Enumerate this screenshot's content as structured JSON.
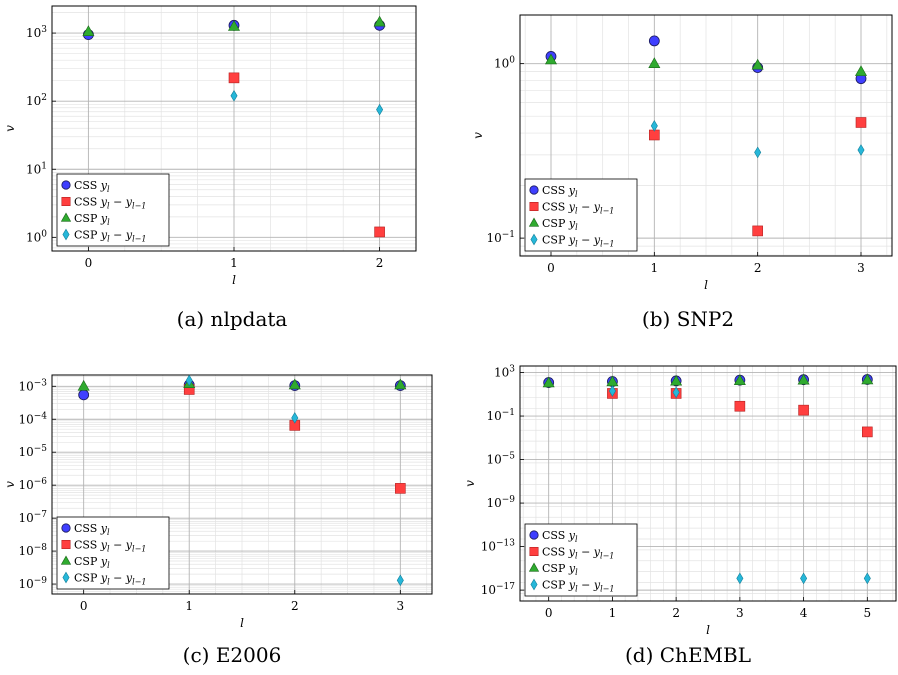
{
  "chart_data": [
    {
      "type": "scatter",
      "caption": "(a) nlpdata",
      "xlabel": "l",
      "ylabel": "v",
      "yscale": "log",
      "ylim": [
        0.63,
        2500
      ],
      "xlim": [
        -0.25,
        2.25
      ],
      "x_ticks": [
        0,
        1,
        2
      ],
      "y_ticks": [
        {
          "value": 1,
          "label": "10^0"
        },
        {
          "value": 10,
          "label": "10^1"
        },
        {
          "value": 100,
          "label": "10^2"
        },
        {
          "value": 1000,
          "label": "10^3"
        }
      ],
      "grid": true,
      "legend_position": "bottom-left",
      "series": [
        {
          "name": "CSS y_l",
          "legend_main": "CSS",
          "legend_math": "y",
          "legend_sub": "l",
          "legend_tail": "",
          "legend_tail_sub": "",
          "marker": "circle",
          "color": "#3f3fff",
          "x": [
            0,
            1,
            2
          ],
          "y": [
            950,
            1300,
            1300
          ]
        },
        {
          "name": "CSS y_l - y_{l-1}",
          "legend_main": "CSS",
          "legend_math": "y",
          "legend_sub": "l",
          "legend_tail": " − y",
          "legend_tail_sub": "l−1",
          "marker": "square",
          "color": "#ff3f3f",
          "x": [
            1,
            2
          ],
          "y": [
            220,
            1.2
          ]
        },
        {
          "name": "CSP y_l",
          "legend_main": "CSP",
          "legend_math": "y",
          "legend_sub": "l",
          "legend_tail": "",
          "legend_tail_sub": "",
          "marker": "triangle",
          "color": "#2faa2f",
          "x": [
            0,
            1,
            2
          ],
          "y": [
            1050,
            1250,
            1450
          ]
        },
        {
          "name": "CSP y_l - y_{l-1}",
          "legend_main": "CSP",
          "legend_math": "y",
          "legend_sub": "l",
          "legend_tail": " − y",
          "legend_tail_sub": "l−1",
          "marker": "diamond",
          "color": "#26b7d9",
          "x": [
            1,
            2
          ],
          "y": [
            120,
            75
          ]
        }
      ]
    },
    {
      "type": "scatter",
      "caption": "(b) SNP2",
      "xlabel": "l",
      "ylabel": "v",
      "yscale": "log",
      "ylim": [
        0.079,
        1.9
      ],
      "xlim": [
        -0.3,
        3.3
      ],
      "x_ticks": [
        0,
        1,
        2,
        3
      ],
      "y_ticks": [
        {
          "value": 0.1,
          "label": "10^-1"
        },
        {
          "value": 1,
          "label": "10^0"
        }
      ],
      "grid": true,
      "legend_position": "bottom-left",
      "series": [
        {
          "name": "CSS y_l",
          "legend_main": "CSS",
          "legend_math": "y",
          "legend_sub": "l",
          "legend_tail": "",
          "legend_tail_sub": "",
          "marker": "circle",
          "color": "#3f3fff",
          "x": [
            0,
            1,
            2,
            3
          ],
          "y": [
            1.1,
            1.35,
            0.95,
            0.82
          ]
        },
        {
          "name": "CSS y_l - y_{l-1}",
          "legend_main": "CSS",
          "legend_math": "y",
          "legend_sub": "l",
          "legend_tail": " − y",
          "legend_tail_sub": "l−1",
          "marker": "square",
          "color": "#ff3f3f",
          "x": [
            1,
            2,
            3
          ],
          "y": [
            0.39,
            0.11,
            0.46
          ]
        },
        {
          "name": "CSP y_l",
          "legend_main": "CSP",
          "legend_math": "y",
          "legend_sub": "l",
          "legend_tail": "",
          "legend_tail_sub": "",
          "marker": "triangle",
          "color": "#2faa2f",
          "x": [
            0,
            1,
            2,
            3
          ],
          "y": [
            1.05,
            1.0,
            0.98,
            0.9
          ]
        },
        {
          "name": "CSP y_l - y_{l-1}",
          "legend_main": "CSP",
          "legend_math": "y",
          "legend_sub": "l",
          "legend_tail": " − y",
          "legend_tail_sub": "l−1",
          "marker": "diamond",
          "color": "#26b7d9",
          "x": [
            1,
            2,
            3
          ],
          "y": [
            0.44,
            0.31,
            0.32
          ]
        }
      ]
    },
    {
      "type": "scatter",
      "caption": "(c) E2006",
      "xlabel": "l",
      "ylabel": "v",
      "yscale": "log",
      "ylim": [
        5e-10,
        0.0022
      ],
      "xlim": [
        -0.3,
        3.3
      ],
      "x_ticks": [
        0,
        1,
        2,
        3
      ],
      "y_ticks": [
        {
          "value": 1e-09,
          "label": "10^-9"
        },
        {
          "value": 1e-08,
          "label": "10^-8"
        },
        {
          "value": 1e-07,
          "label": "10^-7"
        },
        {
          "value": 1e-06,
          "label": "10^-6"
        },
        {
          "value": 1e-05,
          "label": "10^-5"
        },
        {
          "value": 0.0001,
          "label": "10^-4"
        },
        {
          "value": 0.001,
          "label": "10^-3"
        }
      ],
      "grid": true,
      "legend_position": "bottom-left",
      "series": [
        {
          "name": "CSS y_l",
          "legend_main": "CSS",
          "legend_math": "y",
          "legend_sub": "l",
          "legend_tail": "",
          "legend_tail_sub": "",
          "marker": "circle",
          "color": "#3f3fff",
          "x": [
            0,
            1,
            2,
            3
          ],
          "y": [
            0.00055,
            0.0011,
            0.00105,
            0.00105
          ]
        },
        {
          "name": "CSS y_l - y_{l-1}",
          "legend_main": "CSS",
          "legend_math": "y",
          "legend_sub": "l",
          "legend_tail": " − y",
          "legend_tail_sub": "l−1",
          "marker": "square",
          "color": "#ff3f3f",
          "x": [
            1,
            2,
            3
          ],
          "y": [
            0.0008,
            6.5e-05,
            8e-07
          ]
        },
        {
          "name": "CSP y_l",
          "legend_main": "CSP",
          "legend_math": "y",
          "legend_sub": "l",
          "legend_tail": "",
          "legend_tail_sub": "",
          "marker": "triangle",
          "color": "#2faa2f",
          "x": [
            0,
            1,
            2,
            3
          ],
          "y": [
            0.001,
            0.0012,
            0.0011,
            0.0011
          ]
        },
        {
          "name": "CSP y_l - y_{l-1}",
          "legend_main": "CSP",
          "legend_math": "y",
          "legend_sub": "l",
          "legend_tail": " − y",
          "legend_tail_sub": "l−1",
          "marker": "diamond",
          "color": "#26b7d9",
          "x": [
            1,
            2,
            3
          ],
          "y": [
            0.0015,
            0.00011,
            1.3e-09
          ]
        }
      ]
    },
    {
      "type": "scatter",
      "caption": "(d) ChEMBL",
      "xlabel": "l",
      "ylabel": "v",
      "yscale": "log",
      "ylim": [
        1e-18,
        4000.0
      ],
      "xlim": [
        -0.45,
        5.45
      ],
      "x_ticks": [
        0,
        1,
        2,
        3,
        4,
        5
      ],
      "y_ticks": [
        {
          "value": 1e-17,
          "label": "10^-17"
        },
        {
          "value": 1e-13,
          "label": "10^-13"
        },
        {
          "value": 1e-09,
          "label": "10^-9"
        },
        {
          "value": 1e-05,
          "label": "10^-5"
        },
        {
          "value": 0.1,
          "label": "10^-1"
        },
        {
          "value": 1000.0,
          "label": "10^3"
        }
      ],
      "grid": true,
      "legend_position": "bottom-left",
      "series": [
        {
          "name": "CSS y_l",
          "legend_main": "CSS",
          "legend_math": "y",
          "legend_sub": "l",
          "legend_tail": "",
          "legend_tail_sub": "",
          "marker": "circle",
          "color": "#3f3fff",
          "x": [
            0,
            1,
            2,
            3,
            4,
            5
          ],
          "y": [
            120,
            150,
            170,
            200,
            220,
            230
          ]
        },
        {
          "name": "CSS y_l - y_{l-1}",
          "legend_main": "CSS",
          "legend_math": "y",
          "legend_sub": "l",
          "legend_tail": " − y",
          "legend_tail_sub": "l−1",
          "marker": "square",
          "color": "#ff3f3f",
          "x": [
            1,
            2,
            3,
            4,
            5
          ],
          "y": [
            12,
            12,
            0.8,
            0.35,
            0.0035
          ]
        },
        {
          "name": "CSP y_l",
          "legend_main": "CSP",
          "legend_math": "y",
          "legend_sub": "l",
          "legend_tail": "",
          "legend_tail_sub": "",
          "marker": "triangle",
          "color": "#2faa2f",
          "x": [
            0,
            1,
            2,
            3,
            4,
            5
          ],
          "y": [
            110,
            140,
            160,
            180,
            200,
            210
          ]
        },
        {
          "name": "CSP y_l - y_{l-1}",
          "legend_main": "CSP",
          "legend_math": "y",
          "legend_sub": "l",
          "legend_tail": " − y",
          "legend_tail_sub": "l−1",
          "marker": "diamond",
          "color": "#26b7d9",
          "x": [
            1,
            2,
            3,
            4,
            5
          ],
          "y": [
            20,
            15,
            1.2e-16,
            1.2e-16,
            1.2e-16
          ]
        }
      ]
    }
  ]
}
